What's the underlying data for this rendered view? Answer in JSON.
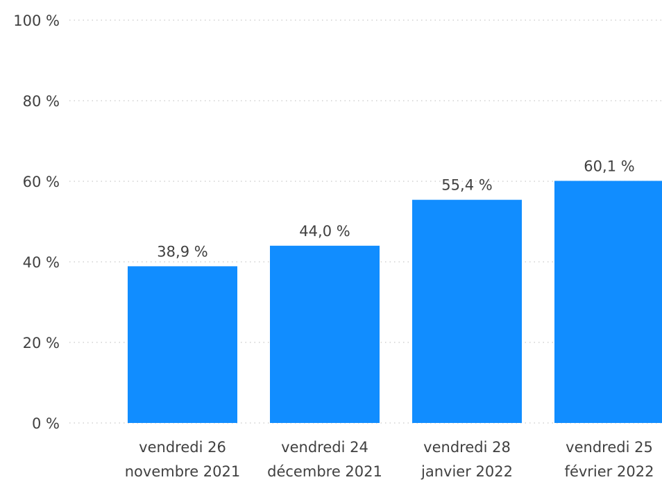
{
  "chart_data": {
    "type": "bar",
    "categories": [
      [
        "vendredi 26",
        "novembre 2021"
      ],
      [
        "vendredi 24",
        "décembre 2021"
      ],
      [
        "vendredi 28",
        "janvier 2022"
      ],
      [
        "vendredi 25",
        "février 2022"
      ]
    ],
    "values": [
      38.9,
      44.0,
      55.4,
      60.1
    ],
    "value_labels": [
      "38,9 %",
      "44,0 %",
      "55,4 %",
      "60,1 %"
    ],
    "ylim": [
      0,
      100
    ],
    "yticks": [
      0,
      20,
      40,
      60,
      80,
      100
    ],
    "ytick_labels": [
      "0 %",
      "20 %",
      "40 %",
      "60 %",
      "80 %",
      "100 %"
    ],
    "bar_color": "#118dff",
    "grid": true,
    "title": "",
    "xlabel": "",
    "ylabel": ""
  }
}
